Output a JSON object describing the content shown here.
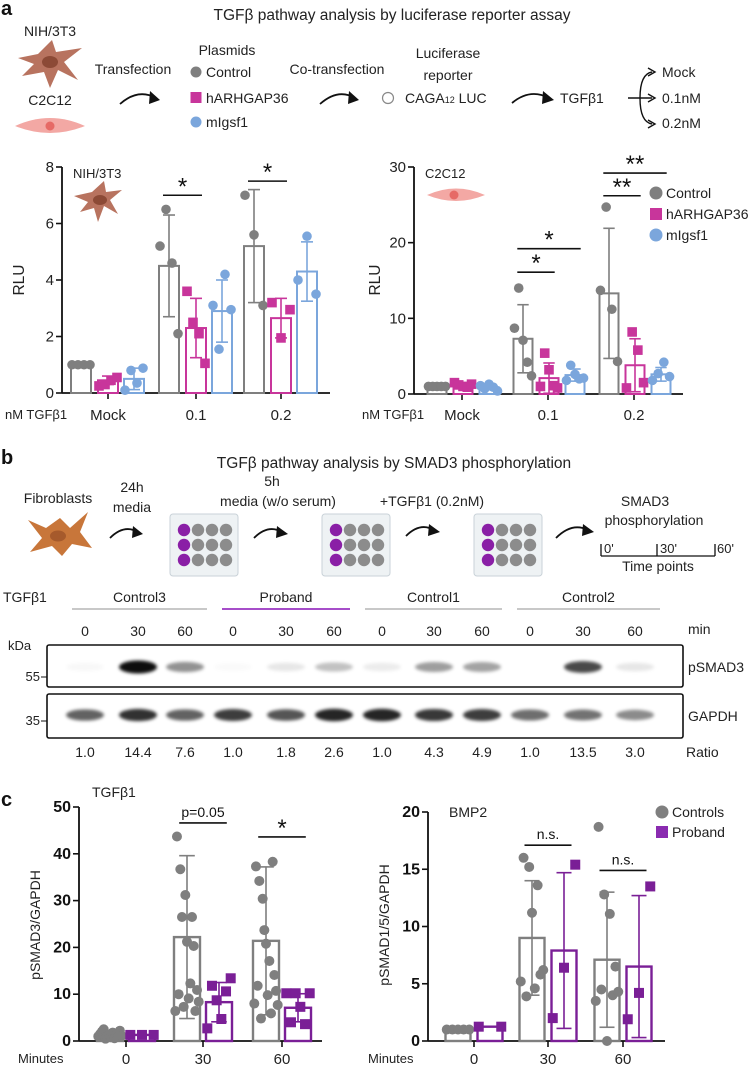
{
  "panel_labels": {
    "a": "a",
    "b": "b",
    "c": "c"
  },
  "panel_a": {
    "title": "TGFβ pathway analysis by luciferase reporter assay",
    "cell_lines": [
      "NIH/3T3",
      "C2C12"
    ],
    "transfection": "Transfection",
    "plasmids_title": "Plasmids",
    "plasmids": [
      {
        "label": "Control",
        "color": "#7f7f7f",
        "marker": "circle"
      },
      {
        "label": "hARHGAP36",
        "color": "#c8359b",
        "marker": "square"
      },
      {
        "label": "mIgsf1",
        "color": "#7ba6dc",
        "marker": "circle"
      }
    ],
    "cotransfection": "Co-transfection",
    "reporter_title_1": "Luciferase",
    "reporter_title_2": "reporter",
    "reporter_main": "CAGA",
    "reporter_sub": "12",
    "reporter_suffix": " LUC",
    "treatment": "TGFβ1",
    "doses": [
      "Mock",
      "0.1nM",
      "0.2nM"
    ]
  },
  "panel_b": {
    "title": "TGFβ pathway analysis by SMAD3 phosphorylation",
    "cells": "Fibroblasts",
    "step1": [
      "24h",
      "media"
    ],
    "step2": [
      "5h",
      "media (w/o serum)"
    ],
    "step3": "+TGFβ1 (0.2nM)",
    "readout": [
      "SMAD3",
      "phosphorylation"
    ],
    "timepoints": [
      "0'",
      "30'",
      "60'"
    ],
    "timepoints_label": "Time points",
    "western": {
      "treatment_label": "TGFβ1",
      "groups": [
        {
          "name": "Control3",
          "color": "#c8c8c8"
        },
        {
          "name": "Proband",
          "color": "#a64dc9"
        },
        {
          "name": "Control1",
          "color": "#c8c8c8"
        },
        {
          "name": "Control2",
          "color": "#c8c8c8"
        }
      ],
      "times": [
        "0",
        "30",
        "60"
      ],
      "time_unit": "min",
      "kda_label": "kDa",
      "markers": [
        "55",
        "35"
      ],
      "blots": [
        {
          "name": "pSMAD3",
          "intensity": [
            0.03,
            1.0,
            0.45,
            0.02,
            0.1,
            0.25,
            0.08,
            0.4,
            0.38,
            0.0,
            0.75,
            0.1
          ]
        },
        {
          "name": "GAPDH",
          "intensity": [
            0.65,
            0.85,
            0.65,
            0.8,
            0.7,
            0.9,
            0.9,
            0.82,
            0.8,
            0.6,
            0.58,
            0.48
          ]
        }
      ],
      "ratio_label": "Ratio",
      "ratios": [
        "1.0",
        "14.4",
        "7.6",
        "1.0",
        "1.8",
        "2.6",
        "1.0",
        "4.3",
        "4.9",
        "1.0",
        "13.5",
        "3.0"
      ]
    }
  },
  "chart_data": [
    {
      "type": "bar",
      "title": "NIH/3T3",
      "xlabel": "nM TGFβ1",
      "ylabel": "RLU",
      "ylim": [
        0,
        8
      ],
      "yticks": [
        "0",
        "2",
        "4",
        "6",
        "8"
      ],
      "categories": [
        "Mock",
        "0.1",
        "0.2"
      ],
      "legend": false,
      "series": [
        {
          "name": "Control",
          "color": "#7f7f7f",
          "marker": "circle",
          "groups": [
            {
              "mean": 1.0,
              "sd": 0.0,
              "points": [
                1,
                1,
                1,
                1
              ]
            },
            {
              "mean": 4.5,
              "sd": 1.8,
              "points": [
                5.2,
                6.5,
                4.6,
                2.1
              ]
            },
            {
              "mean": 5.2,
              "sd": 2.0,
              "points": [
                7.0,
                5.6,
                3.1
              ]
            }
          ]
        },
        {
          "name": "hARHGAP36",
          "color": "#c8359b",
          "marker": "square",
          "groups": [
            {
              "mean": 0.45,
              "sd": 0.15,
              "points": [
                0.25,
                0.3,
                0.45,
                0.55
              ]
            },
            {
              "mean": 2.3,
              "sd": 1.05,
              "points": [
                3.6,
                2.5,
                2.1,
                1.05
              ]
            },
            {
              "mean": 2.65,
              "sd": 0.7,
              "points": [
                3.2,
                1.95,
                2.95
              ]
            }
          ]
        },
        {
          "name": "mIgsf1",
          "color": "#7ba6dc",
          "marker": "circle",
          "groups": [
            {
              "mean": 0.5,
              "sd": 0.38,
              "points": [
                0.1,
                0.8,
                0.35,
                0.88
              ]
            },
            {
              "mean": 2.9,
              "sd": 1.1,
              "points": [
                3.1,
                1.55,
                4.2,
                2.95
              ]
            },
            {
              "mean": 4.3,
              "sd": 1.05,
              "points": [
                4.0,
                5.55,
                3.5
              ]
            }
          ]
        }
      ],
      "significance": [
        {
          "group": 1,
          "from": 0,
          "to": 1,
          "y": 7.0,
          "label": "*"
        },
        {
          "group": 2,
          "from": 0,
          "to": 1,
          "y": 7.5,
          "label": "*"
        }
      ]
    },
    {
      "type": "bar",
      "title": "C2C12",
      "xlabel": "nM TGFβ1",
      "ylabel": "RLU",
      "ylim": [
        0,
        30
      ],
      "yticks": [
        "0",
        "10",
        "20",
        "30"
      ],
      "categories": [
        "Mock",
        "0.1",
        "0.2"
      ],
      "legend": true,
      "legend_position": "top-right",
      "series": [
        {
          "name": "Control",
          "color": "#7f7f7f",
          "marker": "circle",
          "groups": [
            {
              "mean": 1.0,
              "sd": 0.0,
              "points": [
                1,
                1,
                1,
                1,
                1
              ]
            },
            {
              "mean": 7.3,
              "sd": 4.5,
              "points": [
                8.7,
                14.0,
                7.1,
                4.2,
                2.4
              ]
            },
            {
              "mean": 13.3,
              "sd": 8.6,
              "points": [
                13.7,
                24.7,
                11.2,
                4.3
              ]
            }
          ]
        },
        {
          "name": "hARHGAP36",
          "color": "#c8359b",
          "marker": "square",
          "groups": [
            {
              "mean": 1.2,
              "sd": 0.3,
              "points": [
                1.5,
                1.2,
                1.0,
                0.9,
                1.3
              ]
            },
            {
              "mean": 2.1,
              "sd": 2.0,
              "points": [
                1.0,
                5.4,
                3.2,
                1.1,
                0.8
              ]
            },
            {
              "mean": 3.8,
              "sd": 3.5,
              "points": [
                0.8,
                8.2,
                5.8,
                1.5
              ]
            }
          ]
        },
        {
          "name": "mIgsf1",
          "color": "#7ba6dc",
          "marker": "circle",
          "groups": [
            {
              "mean": 0.9,
              "sd": 0.35,
              "points": [
                1.1,
                0.7,
                1.3,
                0.9,
                0.4
              ]
            },
            {
              "mean": 2.5,
              "sd": 0.8,
              "points": [
                1.8,
                3.8,
                2.6,
                2.0,
                2.1
              ]
            },
            {
              "mean": 2.6,
              "sd": 0.9,
              "points": [
                1.8,
                2.7,
                4.2,
                2.3
              ]
            }
          ]
        }
      ],
      "significance": [
        {
          "group": 1,
          "from": 0,
          "to": 1,
          "y": 16.1,
          "label": "*"
        },
        {
          "group": 1,
          "from": 0,
          "to": 2,
          "y": 19.2,
          "label": "*"
        },
        {
          "group": 2,
          "from": 0,
          "to": 1,
          "y": 26.2,
          "label": "**"
        },
        {
          "group": 2,
          "from": 0,
          "to": 2,
          "y": 29.2,
          "label": "**"
        }
      ]
    },
    {
      "type": "bar",
      "title": "TGFβ1",
      "xlabel": "Minutes",
      "ylabel": "pSMAD3/GAPDH",
      "ylim": [
        0,
        50
      ],
      "yticks": [
        "0",
        "10",
        "20",
        "30",
        "40",
        "50"
      ],
      "categories": [
        "0",
        "30",
        "60"
      ],
      "legend": false,
      "series": [
        {
          "name": "Controls",
          "color": "#7f7f7f",
          "marker": "circle",
          "groups": [
            {
              "mean": 1.2,
              "sd": 0.6,
              "points": [
                1,
                1.5,
                2,
                2.5,
                0.5,
                1,
                1.2,
                0.8,
                1.8,
                0.6,
                1.4,
                0.9,
                2.2,
                1.1
              ]
            },
            {
              "mean": 22.2,
              "sd": 17.4,
              "points": [
                6.4,
                43.7,
                10.0,
                36.7,
                26.5,
                7.3,
                31.2,
                21.2,
                9.1,
                12.3,
                26.5,
                20.3,
                6.4,
                10.9,
                8.4
              ]
            },
            {
              "mean": 21.4,
              "sd": 15.8,
              "points": [
                8.0,
                37.3,
                11.8,
                34.2,
                4.8,
                30.4,
                23.7,
                20.8,
                9.8,
                17.1,
                5.9,
                38.3,
                14.1,
                10.7,
                7.7
              ]
            }
          ]
        },
        {
          "name": "Proband",
          "color": "#7a1f96",
          "marker": "square",
          "groups": [
            {
              "mean": 1.3,
              "sd": 0.0,
              "points": [
                1.3,
                1.3,
                1.3
              ]
            },
            {
              "mean": 8.3,
              "sd": 4.2,
              "points": [
                2.7,
                11.8,
                8.7,
                4.7,
                10.6,
                13.4
              ]
            },
            {
              "mean": 7.1,
              "sd": 3.0,
              "points": [
                10.2,
                4.0,
                10.2,
                7.3,
                3.6,
                10.2
              ]
            }
          ]
        }
      ],
      "significance": [
        {
          "group": 1,
          "from": 0,
          "to": 1,
          "y": 46.6,
          "label": "p=0.05"
        },
        {
          "group": 2,
          "from": 0,
          "to": 1,
          "y": 43.6,
          "label": "*"
        }
      ]
    },
    {
      "type": "bar",
      "title": "BMP2",
      "xlabel": "Minutes",
      "ylabel": "pSMAD1/5/GAPDH",
      "ylim": [
        0,
        20
      ],
      "yticks": [
        "0",
        "5",
        "10",
        "15",
        "20"
      ],
      "categories": [
        "0",
        "30",
        "60"
      ],
      "legend": true,
      "legend_position": "top-right",
      "series": [
        {
          "name": "Controls",
          "color": "#7f7f7f",
          "marker": "circle",
          "groups": [
            {
              "mean": 1.0,
              "sd": 0.0,
              "points": [
                1,
                1,
                1,
                1,
                1
              ]
            },
            {
              "mean": 9.0,
              "sd": 5.0,
              "points": [
                5.2,
                16.0,
                3.9,
                15.2,
                11.2,
                4.6,
                13.6,
                5.8,
                6.2
              ]
            },
            {
              "mean": 7.1,
              "sd": 5.9,
              "points": [
                3.5,
                18.7,
                4.5,
                12.8,
                0.0,
                11.1,
                4.0,
                6.5,
                4.3
              ]
            }
          ]
        },
        {
          "name": "Proband",
          "color": "#7a1f96",
          "marker": "square",
          "groups": [
            {
              "mean": 1.25,
              "sd": 0.0,
              "points": [
                1.25,
                1.25
              ]
            },
            {
              "mean": 7.9,
              "sd": 6.8,
              "points": [
                2.0,
                6.4,
                15.4
              ]
            },
            {
              "mean": 6.5,
              "sd": 6.2,
              "points": [
                1.9,
                4.2,
                13.5
              ]
            }
          ]
        }
      ],
      "significance": [
        {
          "group": 1,
          "from": 0,
          "to": 1,
          "y": 17.1,
          "label": "n.s."
        },
        {
          "group": 2,
          "from": 0,
          "to": 1,
          "y": 14.9,
          "label": "n.s."
        }
      ]
    }
  ]
}
